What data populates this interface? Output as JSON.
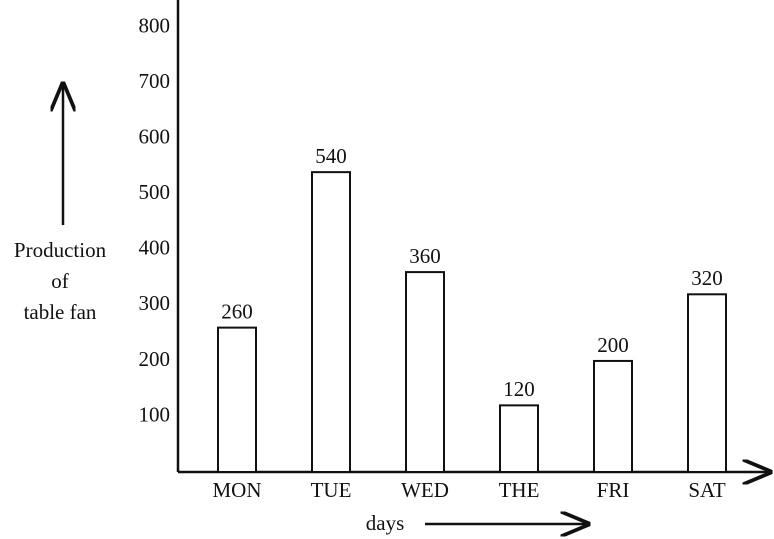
{
  "chart_data": {
    "type": "bar",
    "categories": [
      "MON",
      "TUE",
      "WED",
      "THE",
      "FRI",
      "SAT"
    ],
    "values": [
      260,
      540,
      360,
      120,
      200,
      320
    ],
    "color": "#ffffff",
    "ylim": [
      0,
      850
    ],
    "yticks": [
      100,
      200,
      300,
      400,
      500,
      600,
      700,
      800
    ],
    "y_label": [
      "Production",
      "of",
      "table fan"
    ],
    "x_label": "days",
    "grid": false
  }
}
